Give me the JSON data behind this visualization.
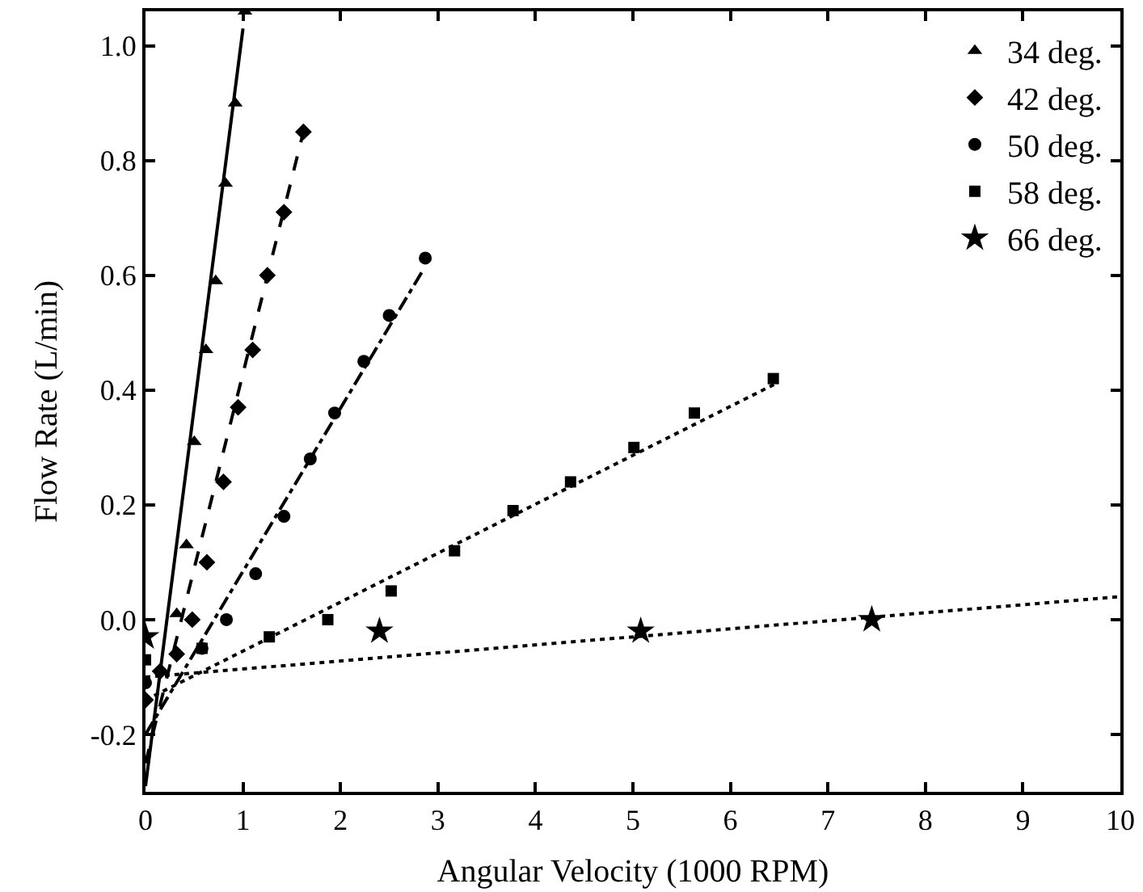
{
  "chart_data": {
    "type": "scatter",
    "xlabel": "Angular Velocity (1000 RPM)",
    "ylabel": "Flow Rate (L/min)",
    "xlim": [
      0,
      10
    ],
    "ylim": [
      -0.3,
      1.06
    ],
    "xticks": [
      0,
      1,
      2,
      3,
      4,
      5,
      6,
      7,
      8,
      9,
      10
    ],
    "yticks": [
      -0.2,
      {
        "value": 0,
        "label": "0.0"
      },
      0.2,
      0.4,
      0.6,
      0.8,
      {
        "value": 1,
        "label": "1.0"
      }
    ],
    "legend": "top right",
    "series": [
      {
        "name": "34 deg.",
        "color": "#000000",
        "marker": "triangle",
        "x": [
          0.32,
          0.42,
          0.5,
          0.62,
          0.72,
          0.82,
          0.92,
          1.02
        ],
        "values": [
          0.01,
          0.13,
          0.31,
          0.47,
          0.59,
          0.76,
          0.9,
          1.06
        ]
      },
      {
        "name": "42 deg.",
        "color": "#000000",
        "marker": "diamond",
        "x": [
          0.0,
          0.15,
          0.32,
          0.48,
          0.63,
          0.8,
          0.95,
          1.1,
          1.25,
          1.42,
          1.62
        ],
        "values": [
          -0.14,
          -0.09,
          -0.06,
          0.0,
          0.1,
          0.24,
          0.37,
          0.47,
          0.6,
          0.71,
          0.85
        ]
      },
      {
        "name": "50 deg.",
        "color": "#000000",
        "marker": "circle",
        "x": [
          0.0,
          0.58,
          0.83,
          1.13,
          1.42,
          1.69,
          1.94,
          2.24,
          2.5,
          2.87
        ],
        "values": [
          -0.11,
          -0.05,
          0.0,
          0.08,
          0.18,
          0.28,
          0.36,
          0.45,
          0.53,
          0.63
        ]
      },
      {
        "name": "58 deg.",
        "color": "#000000",
        "marker": "square",
        "x": [
          0.0,
          0.58,
          1.27,
          1.87,
          2.52,
          3.17,
          3.77,
          4.36,
          5.01,
          5.63,
          6.44
        ],
        "values": [
          -0.07,
          -0.05,
          -0.03,
          0.0,
          0.05,
          0.12,
          0.19,
          0.24,
          0.3,
          0.36,
          0.42
        ]
      },
      {
        "name": "66 deg.",
        "color": "#000000",
        "marker": "star",
        "x": [
          0.0,
          2.4,
          5.08,
          7.45
        ],
        "values": [
          -0.03,
          -0.02,
          -0.02,
          0.0
        ]
      },
      {
        "type": "line",
        "color": "#000000",
        "line_style": "solid",
        "x": [
          0,
          1.0
        ],
        "values": [
          -0.29,
          1.03
        ]
      },
      {
        "type": "line",
        "color": "#000000",
        "line_style": "dashed",
        "x": [
          0,
          1.62
        ],
        "values": [
          -0.25,
          0.85
        ]
      },
      {
        "type": "line",
        "color": "#000000",
        "line_style": "dashdot",
        "x": [
          0,
          2.85
        ],
        "values": [
          -0.2,
          0.61
        ]
      },
      {
        "type": "line",
        "color": "#000000",
        "line_style": "dotted",
        "x": [
          0,
          6.45
        ],
        "values": [
          -0.14,
          0.41
        ]
      },
      {
        "type": "line",
        "color": "#000000",
        "line_style": "dotted",
        "x": [
          0,
          10
        ],
        "values": [
          -0.1,
          0.04
        ]
      }
    ]
  }
}
